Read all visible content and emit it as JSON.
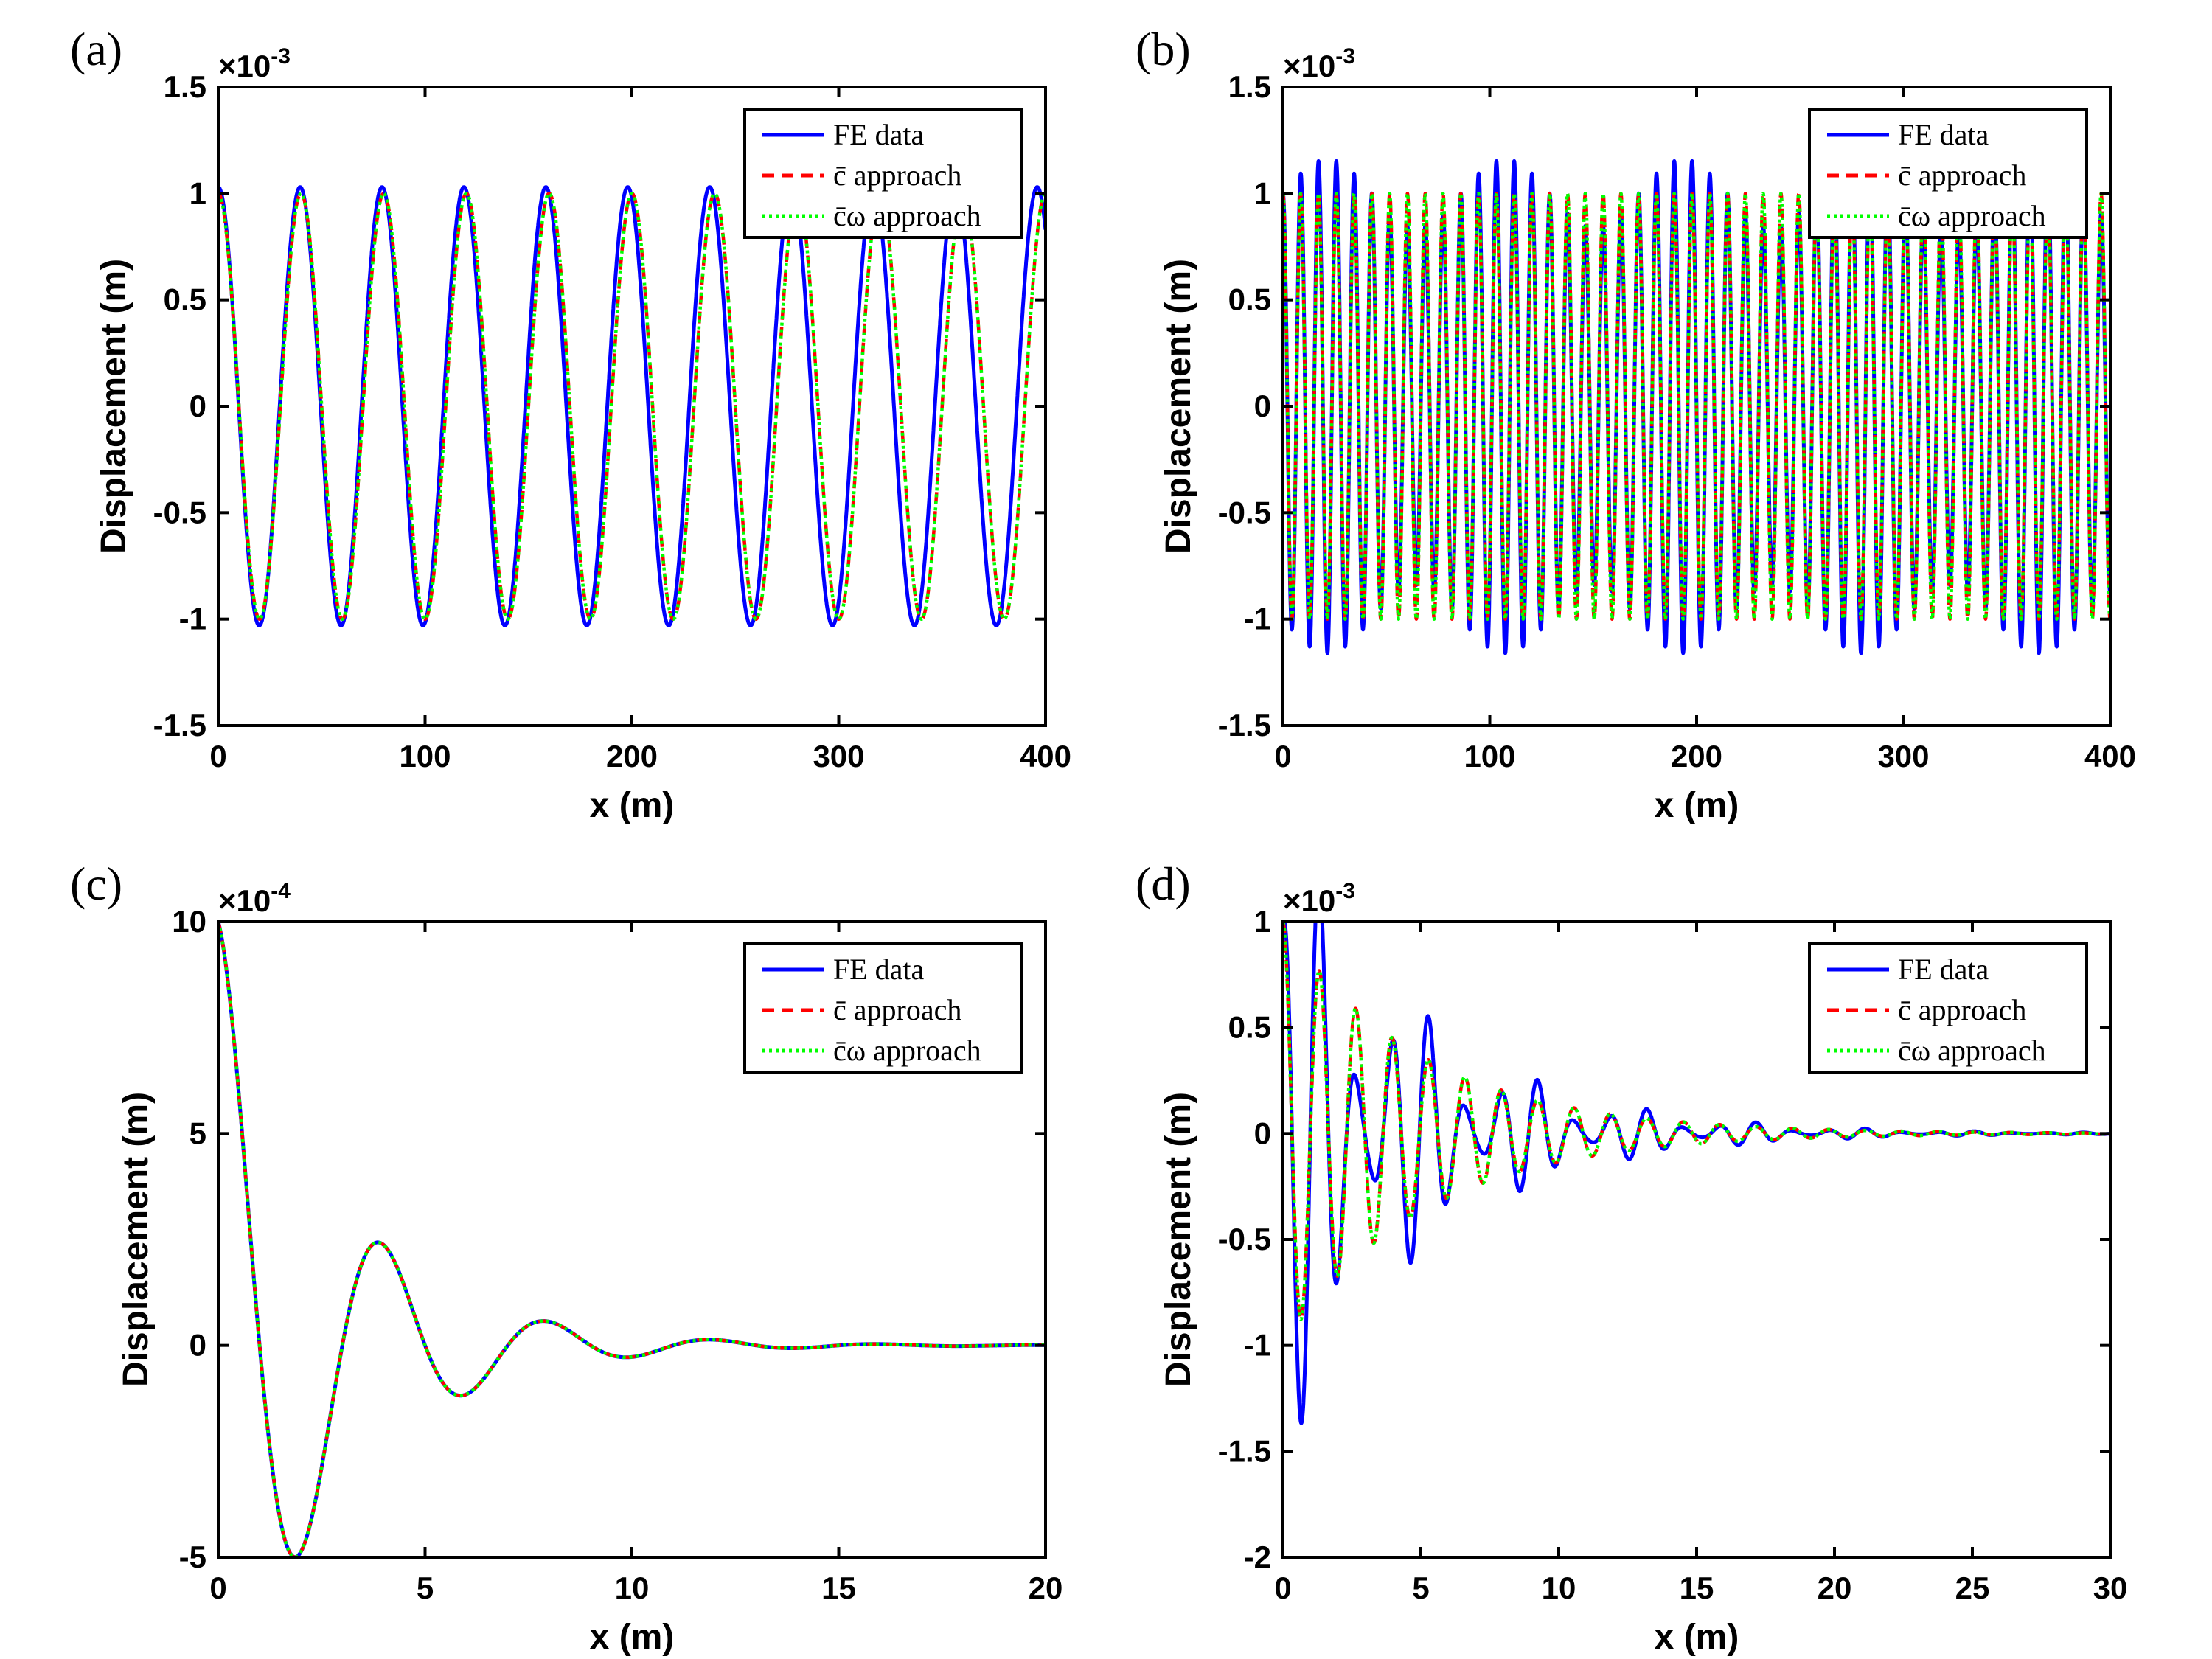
{
  "chart_data": [
    {
      "type": "line",
      "panel_label": "(a)",
      "xlabel": "x (m)",
      "ylabel": "Displacement (m)",
      "exponent_base": "×10",
      "exponent_power": "-3",
      "xlim": [
        0,
        400
      ],
      "ylim": [
        -1.5,
        1.5
      ],
      "xticks": [
        0,
        100,
        200,
        300,
        400
      ],
      "xtick_labels": [
        "0",
        "100",
        "200",
        "300",
        "400"
      ],
      "yticks": [
        -1.5,
        -1,
        -0.5,
        0,
        0.5,
        1,
        1.5
      ],
      "ytick_labels": [
        "-1.5",
        "-1",
        "-0.5",
        "0",
        "0.5",
        "1",
        "1.5"
      ],
      "legend": [
        "FE data",
        "c̄ approach",
        "c̄ω approach"
      ],
      "legend_position": "top-right",
      "series": [
        {
          "name": "FE data",
          "color": "#0000ff",
          "style": "solid",
          "model": {
            "kind": "cos",
            "A": 1.03,
            "wavelength": 39.6
          }
        },
        {
          "name": "c̄ approach",
          "color": "#ff0000",
          "style": "dashed",
          "model": {
            "kind": "cos",
            "A": 1.0,
            "wavelength": 40.0
          }
        },
        {
          "name": "c̄ω approach",
          "color": "#00ff00",
          "style": "dotted",
          "model": {
            "kind": "cos",
            "A": 1.0,
            "wavelength": 40.0
          }
        }
      ]
    },
    {
      "type": "line",
      "panel_label": "(b)",
      "xlabel": "x (m)",
      "ylabel": "Displacement (m)",
      "exponent_base": "×10",
      "exponent_power": "-3",
      "xlim": [
        0,
        400
      ],
      "ylim": [
        -1.5,
        1.5
      ],
      "xticks": [
        0,
        100,
        200,
        300,
        400
      ],
      "xtick_labels": [
        "0",
        "100",
        "200",
        "300",
        "400"
      ],
      "yticks": [
        -1.5,
        -1,
        -0.5,
        0,
        0.5,
        1,
        1.5
      ],
      "ytick_labels": [
        "-1.5",
        "-1",
        "-0.5",
        "0",
        "0.5",
        "1",
        "1.5"
      ],
      "legend": [
        "FE data",
        "c̄ approach",
        "c̄ω approach"
      ],
      "legend_position": "top-right",
      "series": [
        {
          "name": "FE data",
          "color": "#0000ff",
          "style": "solid",
          "model": {
            "kind": "beat",
            "A": 1.0,
            "wavelength": 8.6,
            "beat_amp": 0.16,
            "beat_period": 86
          }
        },
        {
          "name": "c̄ approach",
          "color": "#ff0000",
          "style": "dashed",
          "model": {
            "kind": "cos",
            "A": 1.0,
            "wavelength": 8.6
          }
        },
        {
          "name": "c̄ω approach",
          "color": "#00ff00",
          "style": "dotted",
          "model": {
            "kind": "cos",
            "A": 1.0,
            "wavelength": 8.6
          }
        }
      ]
    },
    {
      "type": "line",
      "panel_label": "(c)",
      "xlabel": "x (m)",
      "ylabel": "Displacement (m)",
      "exponent_base": "×10",
      "exponent_power": "-4",
      "xlim": [
        0,
        20
      ],
      "ylim": [
        -5,
        10
      ],
      "xticks": [
        0,
        5,
        10,
        15,
        20
      ],
      "xtick_labels": [
        "0",
        "5",
        "10",
        "15",
        "20"
      ],
      "yticks": [
        -5,
        0,
        5,
        10
      ],
      "ytick_labels": [
        "-5",
        "0",
        "5",
        "10"
      ],
      "legend": [
        "FE data",
        "c̄ approach",
        "c̄ω approach"
      ],
      "legend_position": "top-right",
      "series": [
        {
          "name": "FE data",
          "color": "#0000ff",
          "style": "solid",
          "model": {
            "kind": "damped",
            "A": 10,
            "wavelength": 4.0,
            "decay": 0.36
          }
        },
        {
          "name": "c̄ approach",
          "color": "#ff0000",
          "style": "dashed",
          "model": {
            "kind": "damped",
            "A": 10,
            "wavelength": 4.0,
            "decay": 0.36
          }
        },
        {
          "name": "c̄ω approach",
          "color": "#00ff00",
          "style": "dotted",
          "model": {
            "kind": "damped",
            "A": 10,
            "wavelength": 4.0,
            "decay": 0.36
          }
        }
      ]
    },
    {
      "type": "line",
      "panel_label": "(d)",
      "xlabel": "x (m)",
      "ylabel": "Displacement (m)",
      "exponent_base": "×10",
      "exponent_power": "-3",
      "xlim": [
        0,
        30
      ],
      "ylim": [
        -2,
        1
      ],
      "xticks": [
        0,
        5,
        10,
        15,
        20,
        25,
        30
      ],
      "xtick_labels": [
        "0",
        "5",
        "10",
        "15",
        "20",
        "25",
        "30"
      ],
      "yticks": [
        -2,
        -1.5,
        -1,
        -0.5,
        0,
        0.5,
        1
      ],
      "ytick_labels": [
        "-2",
        "-1.5",
        "-1",
        "-0.5",
        "0",
        "0.5",
        "1"
      ],
      "legend": [
        "FE data",
        "c̄ approach",
        "c̄ω approach"
      ],
      "legend_position": "top-right",
      "series": [
        {
          "name": "FE data",
          "color": "#0000ff",
          "style": "solid",
          "model": {
            "kind": "damped_beat",
            "A": 1.0,
            "wavelength": 1.32,
            "decay": 0.2,
            "beat_amp": 0.65,
            "beat_period": 4.0
          }
        },
        {
          "name": "c̄ approach",
          "color": "#ff0000",
          "style": "dashed",
          "model": {
            "kind": "damped",
            "A": 1.0,
            "wavelength": 1.32,
            "decay": 0.2
          }
        },
        {
          "name": "c̄ω approach",
          "color": "#00ff00",
          "style": "dotted",
          "model": {
            "kind": "damped",
            "A": 1.0,
            "wavelength": 1.32,
            "decay": 0.2
          }
        }
      ]
    }
  ]
}
